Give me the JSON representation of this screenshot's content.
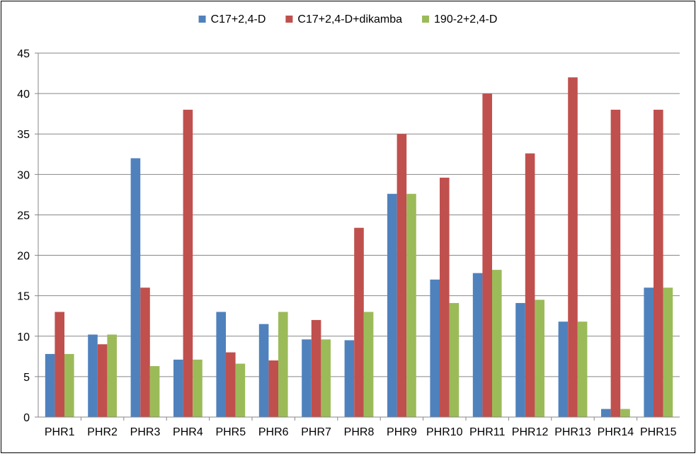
{
  "chart_data": {
    "type": "bar",
    "title": "",
    "xlabel": "",
    "ylabel": "",
    "ylim": [
      0,
      45
    ],
    "yticks": [
      0,
      5,
      10,
      15,
      20,
      25,
      30,
      35,
      40,
      45
    ],
    "grid": true,
    "legend_position": "top",
    "categories": [
      "PHR1",
      "PHR2",
      "PHR3",
      "PHR4",
      "PHR5",
      "PHR6",
      "PHR7",
      "PHR8",
      "PHR9",
      "PHR10",
      "PHR11",
      "PHR12",
      "PHR13",
      "PHR14",
      "PHR15"
    ],
    "series": [
      {
        "name": "C17+2,4-D",
        "color": "#4f81bd",
        "values": [
          7.8,
          10.2,
          32,
          7.1,
          13,
          11.5,
          9.6,
          9.5,
          27.6,
          17,
          17.8,
          14.1,
          11.8,
          1,
          16
        ]
      },
      {
        "name": "C17+2,4-D+dikamba",
        "color": "#c0504d",
        "values": [
          13,
          9,
          16,
          38,
          8,
          7,
          12,
          23.4,
          35,
          29.6,
          40,
          32.6,
          42,
          38,
          38
        ]
      },
      {
        "name": "190-2+2,4-D",
        "color": "#9bbb59",
        "values": [
          7.8,
          10.2,
          6.3,
          7.1,
          6.6,
          13,
          9.6,
          13,
          27.6,
          14.1,
          18.2,
          14.5,
          11.8,
          1,
          16
        ]
      }
    ]
  }
}
